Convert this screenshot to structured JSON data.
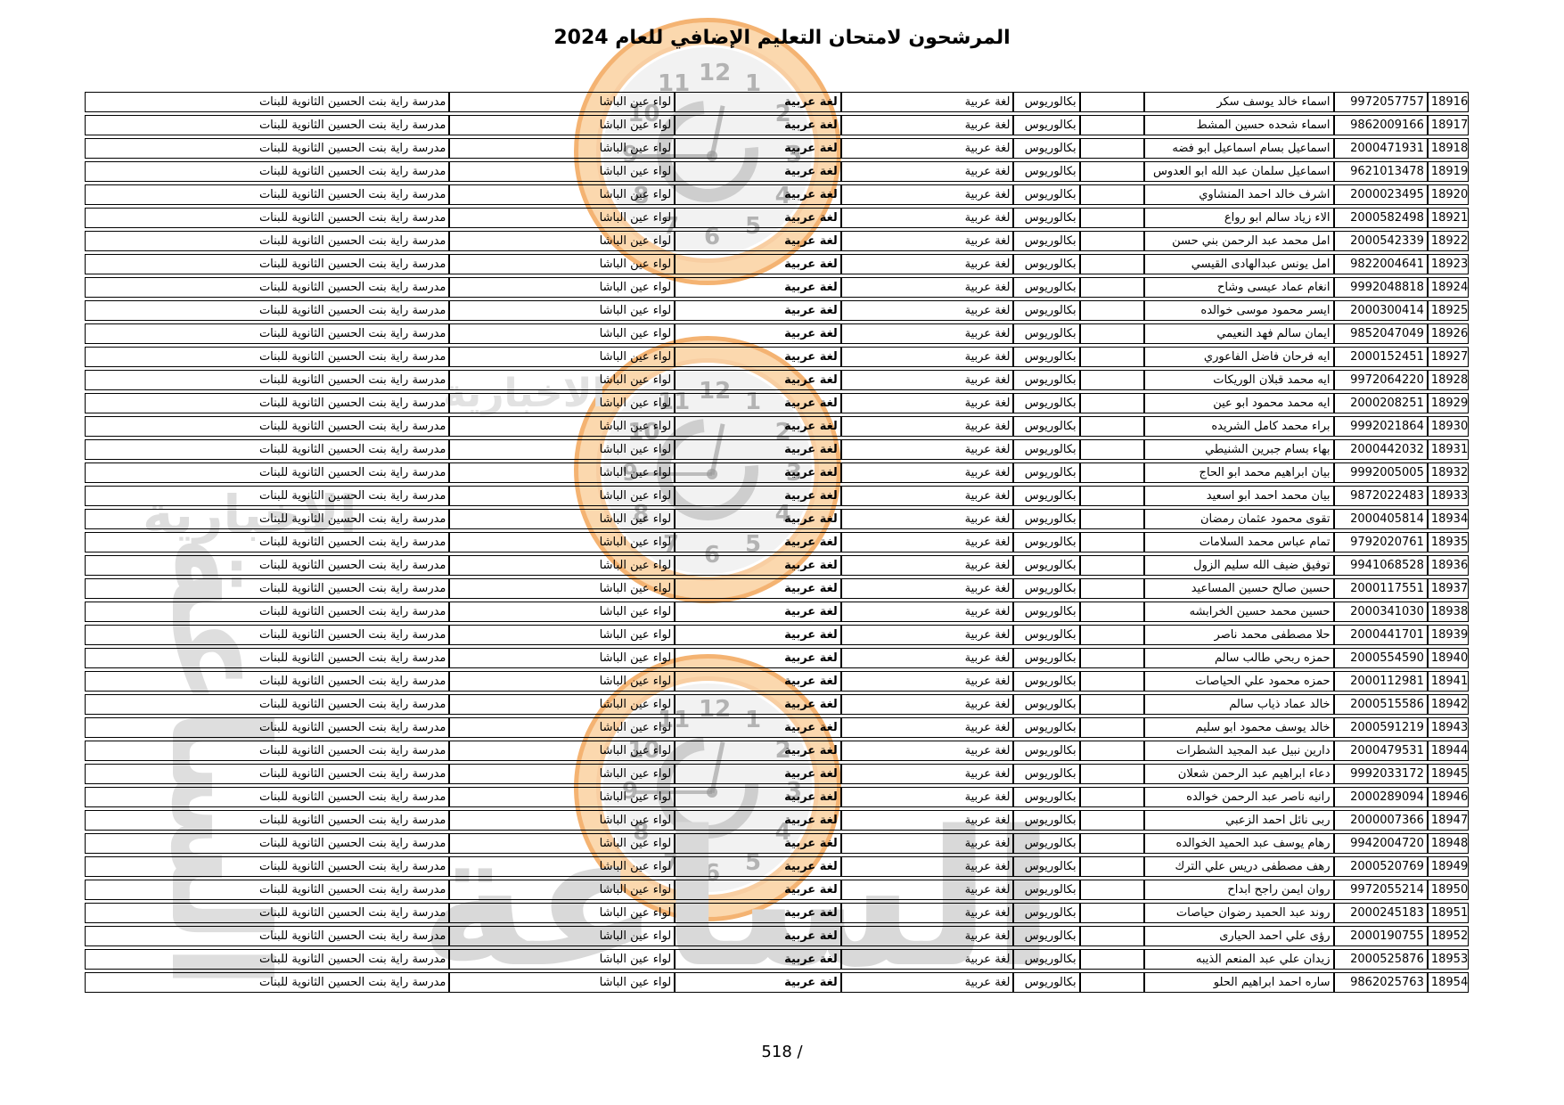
{
  "page": {
    "title": "المرشحون لامتحان التعليم الإضافي للعام 2024",
    "footer_page": "518 /"
  },
  "watermark": {
    "agency_name_large": "الساعة",
    "agency_name_small": "الاخبارية",
    "clock_numbers": [
      "12",
      "1",
      "2",
      "3",
      "4",
      "5",
      "6",
      "7",
      "8",
      "9",
      "10",
      "11"
    ],
    "ring_color": "#f2a655",
    "face_color": "#ececec",
    "text_color": "#d9d9d9"
  },
  "table": {
    "common": {
      "degree": "بكالوريوس",
      "specialization": "لغة عربية",
      "subject": "لغة عربية",
      "directorate": "لواء عين الباشا",
      "school": "مدرسة راية بنت الحسين الثانوية للبنات"
    },
    "rows": [
      {
        "serial": "18916",
        "national": "9972057757",
        "name": "اسماء خالد يوسف سكر"
      },
      {
        "serial": "18917",
        "national": "9862009166",
        "name": "اسماء شحده حسين المشط"
      },
      {
        "serial": "18918",
        "national": "2000471931",
        "name": "اسماعيل بسام اسماعيل ابو فضه"
      },
      {
        "serial": "18919",
        "national": "9621013478",
        "name": "اسماعيل سلمان عبد الله ابو العدوس"
      },
      {
        "serial": "18920",
        "national": "2000023495",
        "name": "اشرف خالد احمد المنشاوي"
      },
      {
        "serial": "18921",
        "national": "2000582498",
        "name": "الاء زياد سالم ابو رواع"
      },
      {
        "serial": "18922",
        "national": "2000542339",
        "name": "امل محمد عبد الرحمن بني حسن"
      },
      {
        "serial": "18923",
        "national": "9822004641",
        "name": "امل يونس عبدالهادى القيسي"
      },
      {
        "serial": "18924",
        "national": "9992048818",
        "name": "انغام عماد عيسى وشاح"
      },
      {
        "serial": "18925",
        "national": "2000300414",
        "name": "ايسر محمود موسى خوالده"
      },
      {
        "serial": "18926",
        "national": "9852047049",
        "name": "ايمان سالم فهد النعيمي"
      },
      {
        "serial": "18927",
        "national": "2000152451",
        "name": "ايه فرحان فاضل الفاعوري"
      },
      {
        "serial": "18928",
        "national": "9972064220",
        "name": "ايه محمد قبلان الوريكات"
      },
      {
        "serial": "18929",
        "national": "2000208251",
        "name": "ايه محمد محمود ابو عين"
      },
      {
        "serial": "18930",
        "national": "9992021864",
        "name": "براء محمد كامل الشريده"
      },
      {
        "serial": "18931",
        "national": "2000442032",
        "name": "بهاء بسام جبرين الشنيطي"
      },
      {
        "serial": "18932",
        "national": "9992005005",
        "name": "بيان ابراهيم محمد ابو الحاج"
      },
      {
        "serial": "18933",
        "national": "9872022483",
        "name": "بيان محمد احمد ابو اسعيد"
      },
      {
        "serial": "18934",
        "national": "2000405814",
        "name": "تقوى محمود عثمان رمضان"
      },
      {
        "serial": "18935",
        "national": "9792020761",
        "name": "تمام عباس محمد السلامات"
      },
      {
        "serial": "18936",
        "national": "9941068528",
        "name": "توفيق ضيف الله سليم الزول"
      },
      {
        "serial": "18937",
        "national": "2000117551",
        "name": "حسين صالح حسين المساعيد"
      },
      {
        "serial": "18938",
        "national": "2000341030",
        "name": "حسين محمد حسين الخرابشه"
      },
      {
        "serial": "18939",
        "national": "2000441701",
        "name": "حلا مصطفى محمد ناصر"
      },
      {
        "serial": "18940",
        "national": "2000554590",
        "name": "حمزه ربحي طالب سالم"
      },
      {
        "serial": "18941",
        "national": "2000112981",
        "name": "حمزه محمود علي الحياصات"
      },
      {
        "serial": "18942",
        "national": "2000515586",
        "name": "خالد عماد ذياب سالم"
      },
      {
        "serial": "18943",
        "national": "2000591219",
        "name": "خالد يوسف محمود ابو سليم"
      },
      {
        "serial": "18944",
        "national": "2000479531",
        "name": "دارين نبيل عبد المجيد الشطرات"
      },
      {
        "serial": "18945",
        "national": "9992033172",
        "name": "دعاء ابراهيم عبد الرحمن شعلان"
      },
      {
        "serial": "18946",
        "national": "2000289094",
        "name": "رانيه ناصر عبد الرحمن خوالده"
      },
      {
        "serial": "18947",
        "national": "2000007366",
        "name": "ربى نائل احمد الزعبي"
      },
      {
        "serial": "18948",
        "national": "9942004720",
        "name": "رهام يوسف عبد الحميد الخوالده"
      },
      {
        "serial": "18949",
        "national": "2000520769",
        "name": "رهف مصطفى دريس علي الترك"
      },
      {
        "serial": "18950",
        "national": "9972055214",
        "name": "روان ايمن راجح ابداح"
      },
      {
        "serial": "18951",
        "national": "2000245183",
        "name": "روند عبد الحميد رضوان حياصات"
      },
      {
        "serial": "18952",
        "national": "2000190755",
        "name": "رؤى علي احمد الحيارى"
      },
      {
        "serial": "18953",
        "national": "2000525876",
        "name": "زيدان علي عبد المنعم الذيبه"
      },
      {
        "serial": "18954",
        "national": "9862025763",
        "name": "ساره احمد ابراهيم الحلو"
      }
    ]
  }
}
